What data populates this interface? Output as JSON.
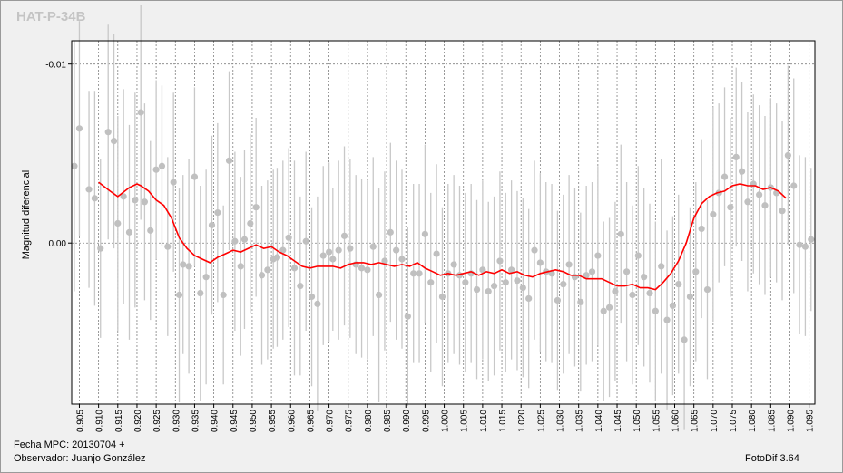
{
  "title": "HAT-P-34B",
  "footer": {
    "fecha": "Fecha MPC: 20130704 +",
    "observer": "Observador: Juanjo González",
    "software": "FotoDif 3.64"
  },
  "colors": {
    "points": "#c0c0c0",
    "errorbars": "#c8c8c8",
    "trend": "#ff0000",
    "grid": "#808080"
  },
  "chart_data": {
    "type": "scatter",
    "title": "HAT-P-34B",
    "ylabel": "Magnitud diferencial",
    "xlabel": "",
    "xlim": [
      0.903,
      1.0965
    ],
    "ylim": [
      0.009,
      -0.0113
    ],
    "y_inverted": true,
    "grid": true,
    "yticks": [
      {
        "value": -0.01,
        "label": "-0.01"
      },
      {
        "value": 0.0,
        "label": "0.00"
      }
    ],
    "xticks": [
      "0.905",
      "0.910",
      "0.915",
      "0.920",
      "0.925",
      "0.930",
      "0.935",
      "0.940",
      "0.945",
      "0.950",
      "0.955",
      "0.960",
      "0.965",
      "0.970",
      "0.975",
      "0.980",
      "0.985",
      "0.990",
      "0.995",
      "1.000",
      "1.005",
      "1.010",
      "1.015",
      "1.020",
      "1.025",
      "1.030",
      "1.035",
      "1.040",
      "1.045",
      "1.050",
      "1.055",
      "1.060",
      "1.065",
      "1.070",
      "1.075",
      "1.080",
      "1.085",
      "1.090",
      "1.095"
    ],
    "points": {
      "x": [
        0.9037,
        0.905,
        0.9075,
        0.909,
        0.9105,
        0.9125,
        0.914,
        0.915,
        0.9165,
        0.918,
        0.9195,
        0.921,
        0.922,
        0.9235,
        0.925,
        0.9265,
        0.928,
        0.9295,
        0.931,
        0.932,
        0.9335,
        0.935,
        0.9365,
        0.938,
        0.9395,
        0.941,
        0.9425,
        0.944,
        0.9455,
        0.947,
        0.948,
        0.9495,
        0.951,
        0.9525,
        0.954,
        0.9555,
        0.9565,
        0.958,
        0.9595,
        0.961,
        0.9625,
        0.964,
        0.9655,
        0.967,
        0.9685,
        0.97,
        0.971,
        0.9725,
        0.974,
        0.9755,
        0.977,
        0.9785,
        0.98,
        0.9815,
        0.983,
        0.9845,
        0.986,
        0.9875,
        0.989,
        0.9905,
        0.992,
        0.9935,
        0.995,
        0.9965,
        0.998,
        0.9995,
        1.001,
        1.0025,
        1.004,
        1.0055,
        1.007,
        1.0085,
        1.01,
        1.0115,
        1.013,
        1.0145,
        1.016,
        1.0175,
        1.019,
        1.0205,
        1.022,
        1.0235,
        1.025,
        1.0265,
        1.028,
        1.0295,
        1.031,
        1.0325,
        1.034,
        1.0355,
        1.037,
        1.0385,
        1.04,
        1.0415,
        1.043,
        1.0445,
        1.046,
        1.0475,
        1.049,
        1.0505,
        1.052,
        1.0535,
        1.055,
        1.0565,
        1.058,
        1.0595,
        1.061,
        1.0625,
        1.064,
        1.0655,
        1.067,
        1.0685,
        1.07,
        1.0715,
        1.073,
        1.0745,
        1.076,
        1.0775,
        1.079,
        1.0805,
        1.082,
        1.0835,
        1.085,
        1.0865,
        1.088,
        1.0895,
        1.091,
        1.0925,
        1.094,
        1.0955
      ],
      "y": [
        -0.0043,
        -0.0064,
        -0.003,
        -0.0025,
        0.0003,
        -0.0062,
        -0.0057,
        -0.0011,
        -0.0026,
        -0.0006,
        -0.0024,
        -0.0073,
        -0.0023,
        -0.0007,
        -0.0041,
        -0.0043,
        0.0002,
        -0.0034,
        0.0029,
        0.0012,
        0.0013,
        -0.0037,
        0.0028,
        0.0019,
        -0.001,
        -0.0017,
        0.0029,
        -0.0046,
        -0.0001,
        0.0013,
        -0.0002,
        -0.0011,
        -0.002,
        0.0018,
        0.0015,
        0.0009,
        0.0008,
        0.0004,
        -0.0003,
        0.0014,
        0.0024,
        -0.0001,
        0.003,
        0.0034,
        0.0007,
        0.0005,
        0.0009,
        0.0004,
        -0.0004,
        0.0003,
        0.0012,
        0.0014,
        0.0015,
        0.0002,
        0.0029,
        0.001,
        -0.0006,
        0.0004,
        0.0009,
        0.0041,
        0.0017,
        0.0017,
        -0.0005,
        0.0022,
        0.0006,
        0.003,
        0.0017,
        0.0012,
        0.0018,
        0.0022,
        0.0017,
        0.0026,
        0.0015,
        0.0027,
        0.0024,
        0.001,
        0.0022,
        0.0015,
        0.0021,
        0.0025,
        0.0031,
        0.0004,
        0.0011,
        0.0016,
        0.0017,
        0.0032,
        0.0023,
        0.0012,
        0.0019,
        0.0033,
        0.0018,
        0.0016,
        0.0007,
        0.0038,
        0.0036,
        0.0027,
        -0.0005,
        0.0016,
        0.0029,
        0.0007,
        0.0019,
        0.0028,
        0.0038,
        0.0013,
        0.0043,
        0.0035,
        0.0023,
        0.0054,
        0.003,
        0.0016,
        -0.0008,
        0.0026,
        -0.0016,
        -0.0028,
        -0.0037,
        -0.002,
        -0.0048,
        -0.004,
        -0.0023,
        -0.0033,
        -0.0027,
        -0.0021,
        -0.0031,
        -0.0028,
        -0.0018,
        -0.0049,
        -0.0032,
        0.0001,
        0.0002,
        -0.0002
      ],
      "err": [
        0.007,
        0.006,
        0.0055,
        0.006,
        0.005,
        0.006,
        0.006,
        0.006,
        0.006,
        0.006,
        0.006,
        0.006,
        0.0055,
        0.005,
        0.005,
        0.0045,
        0.005,
        0.005,
        0.006,
        0.005,
        0.006,
        0.005,
        0.006,
        0.006,
        0.005,
        0.005,
        0.005,
        0.005,
        0.005,
        0.005,
        0.005,
        0.005,
        0.005,
        0.005,
        0.005,
        0.005,
        0.005,
        0.005,
        0.005,
        0.006,
        0.005,
        0.005,
        0.005,
        0.006,
        0.005,
        0.005,
        0.004,
        0.005,
        0.005,
        0.005,
        0.005,
        0.005,
        0.005,
        0.005,
        0.006,
        0.005,
        0.005,
        0.005,
        0.005,
        0.005,
        0.005,
        0.005,
        0.005,
        0.005,
        0.005,
        0.005,
        0.005,
        0.005,
        0.005,
        0.005,
        0.005,
        0.005,
        0.005,
        0.005,
        0.005,
        0.005,
        0.005,
        0.005,
        0.005,
        0.005,
        0.005,
        0.005,
        0.005,
        0.005,
        0.005,
        0.005,
        0.005,
        0.005,
        0.005,
        0.005,
        0.005,
        0.005,
        0.005,
        0.005,
        0.005,
        0.005,
        0.005,
        0.005,
        0.005,
        0.005,
        0.005,
        0.005,
        0.005,
        0.006,
        0.005,
        0.005,
        0.005,
        0.005,
        0.005,
        0.005,
        0.005,
        0.005,
        0.006,
        0.005,
        0.005,
        0.005,
        0.005,
        0.005,
        0.005,
        0.005,
        0.005,
        0.005,
        0.005,
        0.005,
        0.005,
        0.005,
        0.006,
        0.005,
        0.005,
        0.004
      ]
    },
    "trend": {
      "name": "",
      "x": [
        0.91,
        0.913,
        0.915,
        0.918,
        0.92,
        0.921,
        0.923,
        0.925,
        0.927,
        0.929,
        0.931,
        0.933,
        0.935,
        0.937,
        0.939,
        0.941,
        0.943,
        0.945,
        0.947,
        0.949,
        0.951,
        0.953,
        0.955,
        0.957,
        0.959,
        0.961,
        0.963,
        0.965,
        0.967,
        0.969,
        0.971,
        0.973,
        0.975,
        0.977,
        0.979,
        0.981,
        0.983,
        0.985,
        0.987,
        0.989,
        0.991,
        0.993,
        0.995,
        0.997,
        0.999,
        1.001,
        1.003,
        1.005,
        1.007,
        1.009,
        1.011,
        1.013,
        1.015,
        1.017,
        1.019,
        1.021,
        1.023,
        1.025,
        1.027,
        1.029,
        1.031,
        1.033,
        1.035,
        1.037,
        1.039,
        1.041,
        1.043,
        1.045,
        1.047,
        1.049,
        1.051,
        1.053,
        1.055,
        1.057,
        1.059,
        1.061,
        1.063,
        1.065,
        1.067,
        1.069,
        1.071,
        1.073,
        1.075,
        1.077,
        1.079,
        1.081,
        1.083,
        1.085,
        1.087,
        1.089
      ],
      "y": [
        -0.0034,
        -0.0029,
        -0.0026,
        -0.0031,
        -0.0033,
        -0.0032,
        -0.0029,
        -0.0024,
        -0.0021,
        -0.0014,
        -0.0003,
        0.0003,
        0.0007,
        0.0009,
        0.0011,
        0.0008,
        0.0006,
        0.0004,
        0.0005,
        0.0003,
        0.0001,
        0.0003,
        0.0002,
        0.0005,
        0.0007,
        0.001,
        0.0013,
        0.0014,
        0.0013,
        0.0013,
        0.0013,
        0.0014,
        0.0012,
        0.0011,
        0.0011,
        0.0012,
        0.0011,
        0.0012,
        0.0013,
        0.0012,
        0.0013,
        0.0011,
        0.0014,
        0.0016,
        0.0018,
        0.0017,
        0.0018,
        0.0017,
        0.0016,
        0.0018,
        0.0016,
        0.0017,
        0.0015,
        0.0017,
        0.0016,
        0.0018,
        0.0019,
        0.0017,
        0.0016,
        0.0015,
        0.0016,
        0.0018,
        0.0018,
        0.002,
        0.002,
        0.002,
        0.0022,
        0.0024,
        0.0024,
        0.0023,
        0.0025,
        0.0025,
        0.0026,
        0.0022,
        0.0017,
        0.001,
        0.0,
        -0.0014,
        -0.0022,
        -0.0026,
        -0.0028,
        -0.0029,
        -0.0032,
        -0.0033,
        -0.0032,
        -0.0032,
        -0.003,
        -0.0031,
        -0.0029,
        -0.0025
      ]
    }
  }
}
